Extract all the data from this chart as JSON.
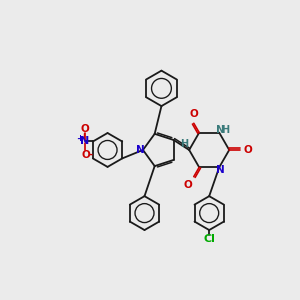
{
  "background_color": "#ebebeb",
  "bond_color": "#1a1a1a",
  "atom_colors": {
    "N": "#1a00cc",
    "O": "#cc0000",
    "Cl": "#00aa00",
    "H": "#3a7a7a",
    "NO2_N": "#1a00cc",
    "NO2_O": "#cc0000"
  },
  "figsize": [
    3.0,
    3.0
  ],
  "dpi": 100
}
